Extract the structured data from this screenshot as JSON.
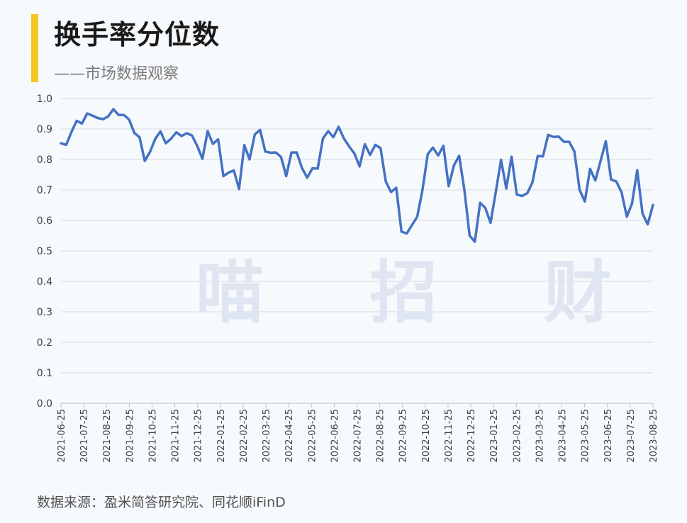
{
  "header": {
    "title": "换手率分位数",
    "subtitle": "——市场数据观察"
  },
  "watermark": "喵 招 财",
  "source": "数据来源：盈米简答研究院、同花顺iFinD",
  "colors": {
    "accent": "#f7c623",
    "line": "#4472c4",
    "grid": "#d5d9e0",
    "axis_text": "#404040"
  },
  "chart_data": {
    "type": "line",
    "title": "换手率分位数",
    "xlabel": "",
    "ylabel": "",
    "ylim": [
      0,
      1
    ],
    "y_ticks": [
      "0.0",
      "0.1",
      "0.2",
      "0.3",
      "0.4",
      "0.5",
      "0.6",
      "0.7",
      "0.8",
      "0.9",
      "1.0"
    ],
    "x_ticks": [
      "2021-06-25",
      "2021-07-25",
      "2021-08-25",
      "2021-09-25",
      "2021-10-25",
      "2021-11-25",
      "2021-12-25",
      "2022-01-25",
      "2022-02-25",
      "2022-03-25",
      "2022-04-25",
      "2022-05-25",
      "2022-06-25",
      "2022-07-25",
      "2022-08-25",
      "2022-09-25",
      "2022-10-25",
      "2022-11-25",
      "2022-12-25",
      "2023-01-25",
      "2023-02-25",
      "2023-03-25",
      "2023-04-25",
      "2023-05-25",
      "2023-06-25",
      "2023-07-25",
      "2023-08-25"
    ],
    "grid": true,
    "legend": "none",
    "frequency": "weekly",
    "series": [
      {
        "values": [
          0.853,
          0.848,
          0.89,
          0.927,
          0.918,
          0.951,
          0.944,
          0.936,
          0.932,
          0.941,
          0.965,
          0.946,
          0.946,
          0.931,
          0.887,
          0.873,
          0.795,
          0.825,
          0.868,
          0.892,
          0.853,
          0.868,
          0.889,
          0.877,
          0.886,
          0.879,
          0.845,
          0.802,
          0.893,
          0.851,
          0.866,
          0.745,
          0.757,
          0.764,
          0.703,
          0.847,
          0.8,
          0.882,
          0.897,
          0.826,
          0.822,
          0.823,
          0.808,
          0.745,
          0.823,
          0.823,
          0.772,
          0.74,
          0.771,
          0.77,
          0.869,
          0.893,
          0.873,
          0.907,
          0.869,
          0.843,
          0.82,
          0.777,
          0.85,
          0.815,
          0.848,
          0.837,
          0.728,
          0.693,
          0.707,
          0.563,
          0.557,
          0.585,
          0.612,
          0.7,
          0.817,
          0.839,
          0.813,
          0.845,
          0.712,
          0.78,
          0.812,
          0.7,
          0.55,
          0.53,
          0.658,
          0.641,
          0.592,
          0.693,
          0.799,
          0.705,
          0.809,
          0.685,
          0.68,
          0.689,
          0.725,
          0.811,
          0.81,
          0.881,
          0.874,
          0.875,
          0.858,
          0.858,
          0.826,
          0.7,
          0.662,
          0.769,
          0.731,
          0.795,
          0.86,
          0.734,
          0.728,
          0.692,
          0.612,
          0.655,
          0.765,
          0.623,
          0.587,
          0.651
        ]
      }
    ]
  }
}
